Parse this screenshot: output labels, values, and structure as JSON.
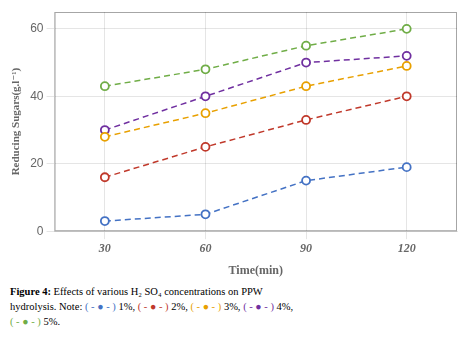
{
  "chart_data": {
    "type": "line",
    "categories": [
      "30",
      "60",
      "90",
      "120"
    ],
    "series": [
      {
        "name": "1%",
        "color": "#4472C4",
        "values": [
          3,
          5,
          15,
          19
        ]
      },
      {
        "name": "2%",
        "color": "#C0392B",
        "values": [
          16,
          25,
          33,
          40
        ]
      },
      {
        "name": "3%",
        "color": "#E8A000",
        "values": [
          28,
          35,
          43,
          49
        ]
      },
      {
        "name": "4%",
        "color": "#7030A0",
        "values": [
          30,
          40,
          50,
          52
        ]
      },
      {
        "name": "5%",
        "color": "#70AD47",
        "values": [
          43,
          48,
          55,
          60
        ]
      }
    ],
    "x_label": "Time(min)",
    "y_label": "Reducing Sugars(g.l⁻¹)",
    "ylim": [
      0,
      65
    ],
    "yticks": [
      0,
      20,
      40,
      60
    ],
    "grid": true,
    "marker": "circle",
    "line_style": "dashed",
    "annotations": [
      "Figure 4: Effects of various H₂ SO₄ concentrations on PPW",
      "hydrolysis. Note: ( - ● - ) 1%, ( - ● - ) 2%, ( - ● - ) 3%, ( - ● - ) 4%,",
      "( - ● - ) 5%."
    ]
  }
}
